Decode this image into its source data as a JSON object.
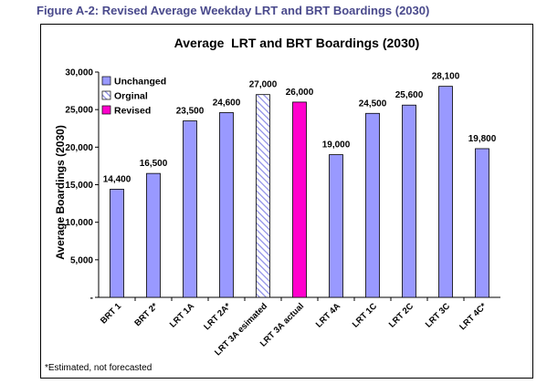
{
  "caption": "Figure A-2: Revised Average Weekday LRT and BRT Boardings (2030)",
  "footnote": "*Estimated, not forecasted",
  "colors": {
    "unchanged": "#9999ff",
    "original_hatch": "#8a8ae6",
    "revised": "#ff00cc",
    "caption": "#4a4a8c"
  },
  "chart_data": {
    "type": "bar",
    "title": "Average  LRT and BRT Boardings (2030)",
    "ylabel": "Average Boardings (2030)",
    "xlabel": "",
    "ylim": [
      0,
      30000
    ],
    "yticks": [
      0,
      5000,
      10000,
      15000,
      20000,
      25000,
      30000
    ],
    "ytick_labels": [
      "-",
      "5,000",
      "10,000",
      "15,000",
      "20,000",
      "25,000",
      "30,000"
    ],
    "categories": [
      "BRT 1",
      "BRT 2*",
      "LRT 1A",
      "LRT 2A*",
      "LRT 3A esimated",
      "LRT 3A actual",
      "LRT 4A",
      "LRT 1C",
      "LRT 2C",
      "LRT 3C",
      "LRT 4C*"
    ],
    "values": [
      14400,
      16500,
      23500,
      24600,
      27000,
      26000,
      19000,
      24500,
      25600,
      28100,
      19800
    ],
    "value_labels": [
      "14,400",
      "16,500",
      "23,500",
      "24,600",
      "27,000",
      "26,000",
      "19,000",
      "24,500",
      "25,600",
      "28,100",
      "19,800"
    ],
    "bar_series": [
      "unchanged",
      "unchanged",
      "unchanged",
      "unchanged",
      "original",
      "revised",
      "unchanged",
      "unchanged",
      "unchanged",
      "unchanged",
      "unchanged"
    ],
    "legend": {
      "placement": "top-left",
      "entries": [
        {
          "key": "unchanged",
          "label": "Unchanged"
        },
        {
          "key": "original",
          "label": "Orginal"
        },
        {
          "key": "revised",
          "label": "Revised"
        }
      ]
    },
    "grid": false
  }
}
